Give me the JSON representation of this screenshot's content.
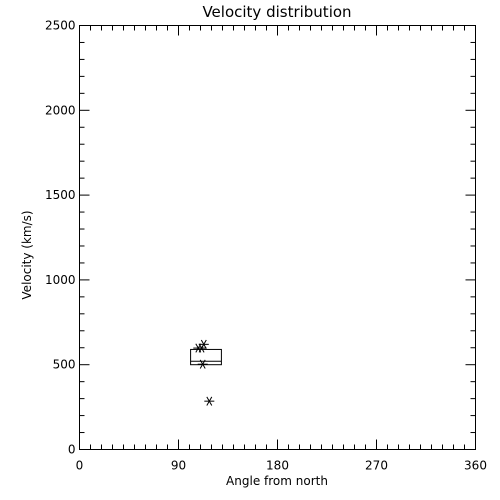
{
  "chart_data": {
    "type": "scatter",
    "title": "Velocity distribution",
    "xlabel": "Angle from north",
    "ylabel": "Velocity (km/s)",
    "xlim": [
      0,
      360
    ],
    "ylim": [
      0,
      2500
    ],
    "xticks": [
      0,
      90,
      180,
      270,
      360
    ],
    "yticks": [
      0,
      500,
      1000,
      1500,
      2000,
      2500
    ],
    "xticks_minor_step": 10,
    "yticks_minor_step": 100,
    "grid": false,
    "marker": "asterisk",
    "points": [
      {
        "x": 113,
        "y": 620
      },
      {
        "x": 108,
        "y": 598
      },
      {
        "x": 111,
        "y": 598
      },
      {
        "x": 112,
        "y": 503
      },
      {
        "x": 118,
        "y": 285
      }
    ],
    "box": {
      "x_range": [
        101,
        129
      ],
      "y_range": [
        500,
        590
      ],
      "median": 520
    }
  }
}
